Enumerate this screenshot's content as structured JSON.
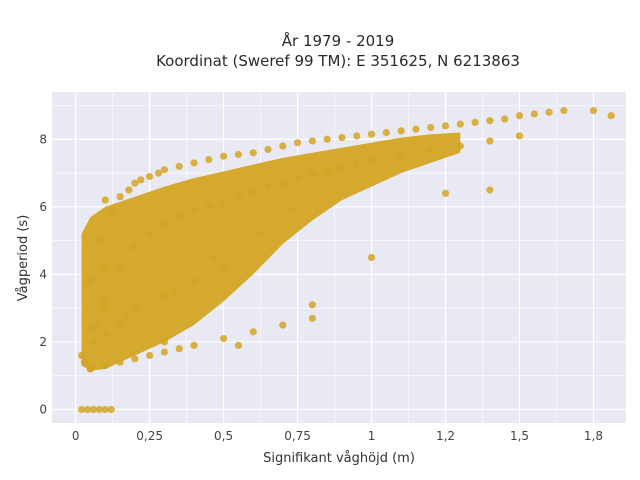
{
  "chart_data": {
    "type": "scatter",
    "title": "År 1979 - 2019",
    "subtitle": "Koordinat (Sweref 99 TM): E 351625, N 6213863",
    "xlabel": "Signifikant våghöjd (m)",
    "ylabel": "Vågperiod (s)",
    "xlim": [
      -0.08,
      1.86
    ],
    "ylim": [
      -0.4,
      9.4
    ],
    "x_ticks": [
      0,
      0.25,
      0.5,
      0.75,
      1,
      1.25,
      1.5,
      1.75
    ],
    "x_tick_labels": [
      "0",
      "0,25",
      "0,5",
      "0,75",
      "1",
      "1,2",
      "1,5",
      "1,8"
    ],
    "y_ticks": [
      0,
      2,
      4,
      6,
      8
    ],
    "y_tick_labels": [
      "0",
      "2",
      "4",
      "6",
      "8"
    ],
    "grid": true,
    "colors": {
      "points": "#d4a423",
      "plot_background": "#e8e9f2",
      "grid": "#ffffff"
    },
    "series": [
      {
        "x": [
          0.02,
          0.04,
          0.06,
          0.08,
          0.1,
          0.12,
          0.02,
          0.03,
          0.05,
          0.05,
          0.07,
          0.08,
          0.1,
          0.1,
          0.12,
          0.15,
          0.18,
          0.2,
          0.22,
          0.25,
          0.28,
          0.3,
          0.35,
          0.4,
          0.45,
          0.5,
          0.55,
          0.6,
          0.65,
          0.7,
          0.75,
          0.8,
          0.85,
          0.9,
          0.95,
          1.0,
          1.05,
          1.1,
          1.15,
          1.2,
          1.25,
          1.3,
          1.35,
          1.4,
          1.45,
          1.5,
          1.55,
          1.6,
          1.65,
          1.75,
          1.81,
          0.05,
          0.1,
          0.15,
          0.2,
          0.25,
          0.3,
          0.35,
          0.4,
          0.45,
          0.5,
          0.55,
          0.6,
          0.65,
          0.7,
          0.75,
          0.8,
          0.85,
          0.9,
          0.95,
          1.0,
          1.1,
          1.2,
          1.3,
          1.4,
          1.5,
          0.05,
          0.1,
          0.15,
          0.2,
          0.25,
          0.3,
          0.35,
          0.4,
          0.5,
          0.6,
          0.7,
          0.8,
          0.06,
          0.1,
          0.15,
          0.2,
          0.3,
          0.4,
          0.5,
          0.09,
          0.3,
          0.55,
          0.8,
          1.0,
          1.25,
          1.4,
          0.17,
          0.33,
          0.47,
          0.62,
          0.73
        ],
        "y": [
          0,
          0,
          0,
          0,
          0,
          0,
          1.6,
          1.4,
          1.2,
          3.8,
          2.5,
          5.0,
          4.2,
          6.2,
          5.8,
          6.3,
          6.5,
          6.7,
          6.8,
          6.9,
          7.0,
          7.1,
          7.2,
          7.3,
          7.4,
          7.5,
          7.55,
          7.6,
          7.7,
          7.8,
          7.9,
          7.95,
          8.0,
          8.05,
          8.1,
          8.15,
          8.2,
          8.25,
          8.3,
          8.35,
          8.4,
          8.45,
          8.5,
          8.55,
          8.6,
          8.7,
          8.75,
          8.8,
          8.85,
          8.85,
          8.7,
          2.4,
          3.2,
          4.2,
          4.8,
          5.2,
          5.5,
          5.7,
          5.9,
          6.0,
          6.2,
          6.3,
          6.45,
          6.6,
          6.7,
          6.85,
          6.95,
          7.05,
          7.15,
          7.25,
          7.35,
          7.5,
          7.65,
          7.8,
          7.95,
          8.1,
          1.2,
          1.3,
          1.4,
          1.5,
          1.6,
          1.7,
          1.8,
          1.9,
          2.1,
          2.3,
          2.5,
          2.7,
          2.0,
          2.2,
          2.6,
          3.0,
          3.4,
          3.8,
          4.2,
          3.0,
          2.0,
          1.9,
          3.1,
          4.5,
          6.4,
          6.5,
          2.8,
          3.5,
          4.5,
          5.2,
          5.9
        ]
      }
    ]
  }
}
